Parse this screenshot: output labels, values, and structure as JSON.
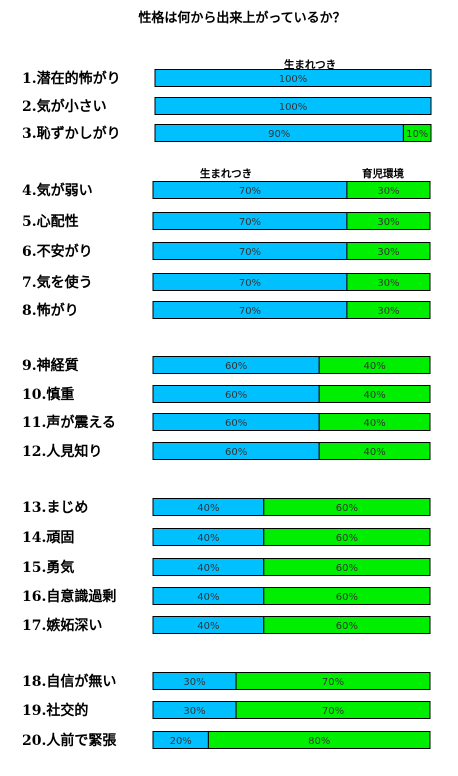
{
  "chart_data": {
    "type": "bar",
    "title": "性格は何から出来上がっているか？",
    "legend_labels": {
      "innate": "生まれつき",
      "environment": "育児環境"
    },
    "xlim": [
      0,
      100
    ],
    "colors": {
      "innate": "#00c0ff",
      "environment": "#00ee00"
    },
    "categories": [
      "1.潜在的怖がり",
      "2.気が小さい",
      "3.恥ずかしがり",
      "4.気が弱い",
      "5.心配性",
      "6.不安がり",
      "7.気を使う",
      "8.怖がり",
      "9.神経質",
      "10.慎重",
      "11.声が震える",
      "12.人見知り",
      "13.まじめ",
      "14.頑固",
      "15.勇気",
      "16.自意識過剰",
      "17.嫉妬深い",
      "18.自信が無い",
      "19.社交的",
      "20.人前で緊張"
    ],
    "series": [
      {
        "name": "生まれつき",
        "values": [
          100,
          100,
          90,
          70,
          70,
          70,
          70,
          70,
          60,
          60,
          60,
          60,
          40,
          40,
          40,
          40,
          40,
          30,
          30,
          20
        ]
      },
      {
        "name": "育児環境",
        "values": [
          0,
          0,
          10,
          30,
          30,
          30,
          30,
          30,
          40,
          40,
          40,
          40,
          60,
          60,
          60,
          60,
          60,
          70,
          70,
          80
        ]
      }
    ],
    "value_labels": {
      "innate": [
        "100%",
        "100%",
        "90%",
        "70%",
        "70%",
        "70%",
        "70%",
        "70%",
        "60%",
        "60%",
        "60%",
        "60%",
        "40%",
        "40%",
        "40%",
        "40%",
        "40%",
        "30%",
        "30%",
        "20%"
      ],
      "environment": [
        "",
        "",
        "10%",
        "30%",
        "30%",
        "30%",
        "30%",
        "30%",
        "40%",
        "40%",
        "40%",
        "40%",
        "60%",
        "60%",
        "60%",
        "60%",
        "60%",
        "70%",
        "70%",
        "80%"
      ]
    }
  }
}
